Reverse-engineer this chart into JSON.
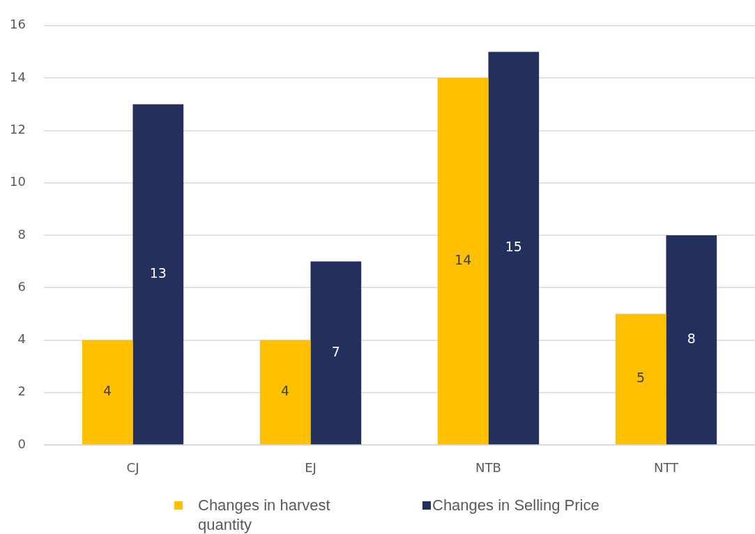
{
  "chart_data": {
    "type": "bar",
    "categories": [
      "CJ",
      "EJ",
      "NTB",
      "NTT"
    ],
    "series": [
      {
        "name": "Changes in harvest quantity",
        "color": "#ffc000",
        "values": [
          4,
          4,
          14,
          5
        ]
      },
      {
        "name": "Changes in Selling Price",
        "color": "#232f5c",
        "values": [
          13,
          7,
          15,
          8
        ]
      }
    ],
    "ylim": [
      0,
      16
    ],
    "yticks": [
      0,
      2,
      4,
      6,
      8,
      10,
      12,
      14,
      16
    ],
    "grid": "y",
    "legend": "bottom",
    "data_labels": true
  }
}
